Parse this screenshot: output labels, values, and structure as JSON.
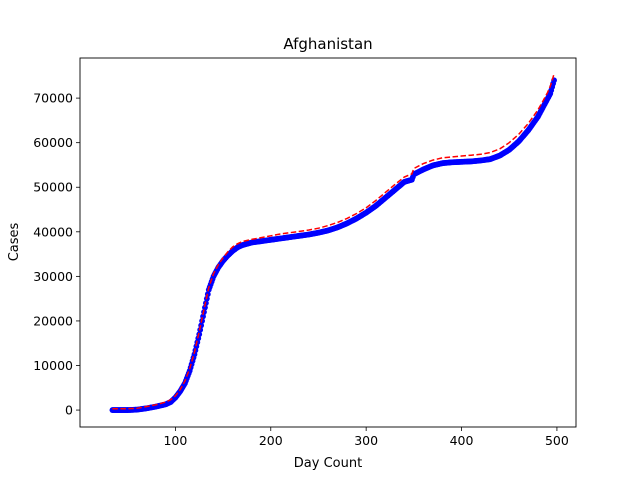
{
  "chart_data": {
    "type": "scatter",
    "title": "Afghanistan",
    "xlabel": "Day Count",
    "ylabel": "Cases",
    "xlim": [
      0,
      520
    ],
    "ylim": [
      -3800,
      79000
    ],
    "xticks": [
      100,
      200,
      300,
      400,
      500
    ],
    "yticks": [
      0,
      10000,
      20000,
      30000,
      40000,
      50000,
      60000,
      70000
    ],
    "grid": false,
    "colors": {
      "observed": "#0000ff",
      "fit": "#ff0000"
    },
    "series": [
      {
        "style": "markers",
        "color": "#0000ff",
        "x": [
          34,
          40,
          50,
          60,
          70,
          80,
          90,
          95,
          100,
          105,
          110,
          115,
          120,
          125,
          130,
          135,
          140,
          145,
          150,
          155,
          160,
          165,
          170,
          180,
          190,
          200,
          210,
          220,
          230,
          240,
          250,
          260,
          270,
          280,
          290,
          300,
          310,
          320,
          330,
          340,
          348,
          350,
          360,
          370,
          380,
          390,
          400,
          410,
          420,
          430,
          440,
          450,
          460,
          470,
          480,
          485,
          490,
          493,
          495,
          497
        ],
        "y": [
          0,
          0,
          0,
          100,
          400,
          800,
          1300,
          1800,
          2800,
          4200,
          6000,
          8800,
          12500,
          17000,
          22000,
          27000,
          30000,
          32000,
          33500,
          34700,
          35700,
          36500,
          37000,
          37600,
          37900,
          38200,
          38500,
          38800,
          39100,
          39400,
          39800,
          40300,
          41000,
          41900,
          43000,
          44300,
          45800,
          47600,
          49400,
          51200,
          51700,
          52900,
          54000,
          54900,
          55400,
          55600,
          55700,
          55800,
          56000,
          56300,
          57100,
          58400,
          60300,
          62800,
          65800,
          67800,
          69800,
          71000,
          72500,
          74000
        ]
      },
      {
        "style": "dashed-line",
        "color": "#ff0000",
        "x": [
          34,
          40,
          50,
          60,
          70,
          80,
          90,
          95,
          100,
          105,
          110,
          115,
          120,
          125,
          130,
          135,
          140,
          145,
          150,
          155,
          160,
          165,
          170,
          180,
          190,
          200,
          210,
          220,
          230,
          240,
          250,
          260,
          270,
          280,
          290,
          300,
          310,
          320,
          330,
          340,
          348,
          350,
          360,
          370,
          380,
          390,
          400,
          410,
          420,
          430,
          440,
          450,
          460,
          470,
          480,
          485,
          490,
          493,
          495,
          497
        ],
        "y": [
          300,
          300,
          300,
          400,
          800,
          1200,
          1800,
          2300,
          3200,
          4600,
          6500,
          9300,
          13000,
          17600,
          22600,
          27500,
          30600,
          32600,
          34200,
          35500,
          36600,
          37300,
          37800,
          38300,
          38700,
          39100,
          39500,
          39800,
          40100,
          40400,
          40800,
          41400,
          42100,
          43000,
          44100,
          45400,
          47000,
          48800,
          50600,
          52300,
          53000,
          54200,
          55300,
          56100,
          56600,
          56800,
          57000,
          57200,
          57400,
          57800,
          58600,
          60000,
          61900,
          64300,
          67300,
          69200,
          71200,
          72600,
          74000,
          75500
        ]
      }
    ]
  }
}
